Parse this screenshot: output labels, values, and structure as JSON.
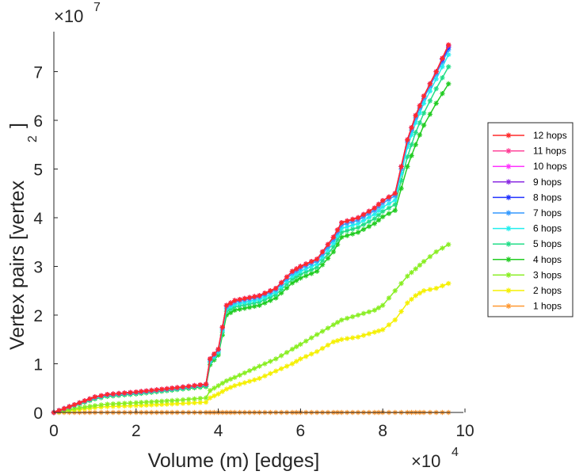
{
  "chart_data": {
    "type": "line",
    "title": "",
    "xlabel": "Volume (m) [edges]",
    "ylabel": "Vertex pairs [vertex",
    "ylabel_superscript": "2",
    "ylabel_close": "]",
    "x_multiplier": {
      "base": "×10",
      "exponent": "4"
    },
    "y_multiplier": {
      "base": "×10",
      "exponent": "7"
    },
    "xlim": [
      0,
      10
    ],
    "ylim": [
      0,
      7.8
    ],
    "xticks": [
      0,
      2,
      4,
      6,
      8,
      10
    ],
    "yticks": [
      0,
      1,
      2,
      3,
      4,
      5,
      6,
      7
    ],
    "xtick_labels": [
      "0",
      "2",
      "4",
      "6",
      "8",
      "10"
    ],
    "ytick_labels": [
      "0",
      "1",
      "2",
      "3",
      "4",
      "5",
      "6",
      "7"
    ],
    "grid": false,
    "legend_position": "right",
    "marker": "asterisk",
    "x": [
      0,
      0.5,
      1.0,
      1.3,
      2.0,
      3.0,
      3.7,
      3.8,
      4.0,
      4.2,
      4.4,
      5.0,
      5.4,
      5.8,
      6.0,
      6.4,
      6.8,
      7.0,
      7.4,
      7.8,
      8.0,
      8.3,
      8.6,
      8.8,
      9.0,
      9.3,
      9.6
    ],
    "series": [
      {
        "name": "12 hops",
        "color": "#ff2a2a",
        "values": [
          0,
          0.16,
          0.32,
          0.37,
          0.42,
          0.51,
          0.58,
          1.1,
          1.3,
          2.2,
          2.3,
          2.4,
          2.55,
          2.9,
          3.0,
          3.15,
          3.6,
          3.9,
          4.0,
          4.2,
          4.35,
          4.5,
          5.6,
          6.1,
          6.5,
          7.0,
          7.55
        ]
      },
      {
        "name": "11 hops",
        "color": "#ff3d96",
        "values": [
          0,
          0.16,
          0.32,
          0.37,
          0.42,
          0.51,
          0.58,
          1.1,
          1.3,
          2.2,
          2.3,
          2.4,
          2.55,
          2.9,
          3.0,
          3.15,
          3.6,
          3.9,
          4.0,
          4.2,
          4.35,
          4.5,
          5.6,
          6.1,
          6.5,
          7.0,
          7.55
        ]
      },
      {
        "name": "10 hops",
        "color": "#ff33ff",
        "values": [
          0,
          0.16,
          0.32,
          0.37,
          0.42,
          0.51,
          0.58,
          1.1,
          1.3,
          2.2,
          2.3,
          2.4,
          2.55,
          2.9,
          3.0,
          3.15,
          3.6,
          3.9,
          4.0,
          4.2,
          4.35,
          4.5,
          5.6,
          6.1,
          6.5,
          7.0,
          7.55
        ]
      },
      {
        "name": "9 hops",
        "color": "#8a2be2",
        "values": [
          0,
          0.16,
          0.32,
          0.37,
          0.42,
          0.51,
          0.58,
          1.1,
          1.3,
          2.2,
          2.3,
          2.4,
          2.55,
          2.9,
          3.0,
          3.15,
          3.6,
          3.9,
          4.0,
          4.2,
          4.35,
          4.5,
          5.6,
          6.1,
          6.5,
          7.0,
          7.53
        ]
      },
      {
        "name": "8 hops",
        "color": "#2233ff",
        "values": [
          0,
          0.16,
          0.32,
          0.37,
          0.42,
          0.51,
          0.58,
          1.1,
          1.3,
          2.2,
          2.3,
          2.4,
          2.55,
          2.9,
          3.0,
          3.15,
          3.6,
          3.9,
          4.0,
          4.2,
          4.35,
          4.5,
          5.6,
          6.1,
          6.5,
          7.0,
          7.5
        ]
      },
      {
        "name": "7 hops",
        "color": "#3399ff",
        "values": [
          0,
          0.16,
          0.31,
          0.36,
          0.41,
          0.5,
          0.57,
          1.08,
          1.28,
          2.17,
          2.27,
          2.37,
          2.52,
          2.86,
          2.96,
          3.11,
          3.55,
          3.85,
          3.95,
          4.15,
          4.3,
          4.45,
          5.55,
          6.05,
          6.45,
          6.95,
          7.45
        ]
      },
      {
        "name": "6 hops",
        "color": "#22eeee",
        "values": [
          0,
          0.15,
          0.3,
          0.35,
          0.4,
          0.49,
          0.56,
          1.05,
          1.25,
          2.13,
          2.22,
          2.32,
          2.47,
          2.8,
          2.9,
          3.05,
          3.48,
          3.78,
          3.88,
          4.07,
          4.22,
          4.36,
          5.45,
          5.95,
          6.35,
          6.85,
          7.35
        ]
      },
      {
        "name": "5 hops",
        "color": "#22dd88",
        "values": [
          0,
          0.15,
          0.29,
          0.34,
          0.39,
          0.48,
          0.55,
          1.02,
          1.22,
          2.08,
          2.17,
          2.27,
          2.42,
          2.74,
          2.84,
          2.98,
          3.4,
          3.7,
          3.8,
          3.98,
          4.13,
          4.27,
          5.25,
          5.75,
          6.15,
          6.65,
          7.1
        ]
      },
      {
        "name": "4 hops",
        "color": "#22cc22",
        "values": [
          0,
          0.14,
          0.28,
          0.33,
          0.38,
          0.47,
          0.53,
          0.98,
          1.18,
          2.0,
          2.1,
          2.2,
          2.35,
          2.66,
          2.76,
          2.9,
          3.3,
          3.6,
          3.7,
          3.88,
          4.02,
          4.15,
          5.05,
          5.5,
          5.9,
          6.35,
          6.75
        ]
      },
      {
        "name": "3 hops",
        "color": "#88ee22",
        "values": [
          0,
          0.08,
          0.14,
          0.17,
          0.2,
          0.25,
          0.3,
          0.45,
          0.55,
          0.65,
          0.72,
          0.95,
          1.1,
          1.3,
          1.4,
          1.6,
          1.8,
          1.9,
          2.0,
          2.1,
          2.2,
          2.5,
          2.8,
          2.95,
          3.1,
          3.3,
          3.45
        ]
      },
      {
        "name": "2 hops",
        "color": "#f5f000",
        "values": [
          0,
          0.05,
          0.1,
          0.12,
          0.14,
          0.18,
          0.21,
          0.3,
          0.38,
          0.48,
          0.55,
          0.7,
          0.85,
          1.0,
          1.1,
          1.25,
          1.45,
          1.5,
          1.55,
          1.65,
          1.7,
          1.9,
          2.25,
          2.4,
          2.5,
          2.55,
          2.65
        ]
      },
      {
        "name": "1 hops",
        "color": "#ff9933",
        "values": [
          0,
          0,
          0,
          0,
          0,
          0,
          0,
          0,
          0,
          0,
          0,
          0,
          0,
          0,
          0,
          0,
          0,
          0,
          0,
          0,
          0,
          0,
          0,
          0,
          0,
          0,
          0
        ]
      }
    ]
  }
}
